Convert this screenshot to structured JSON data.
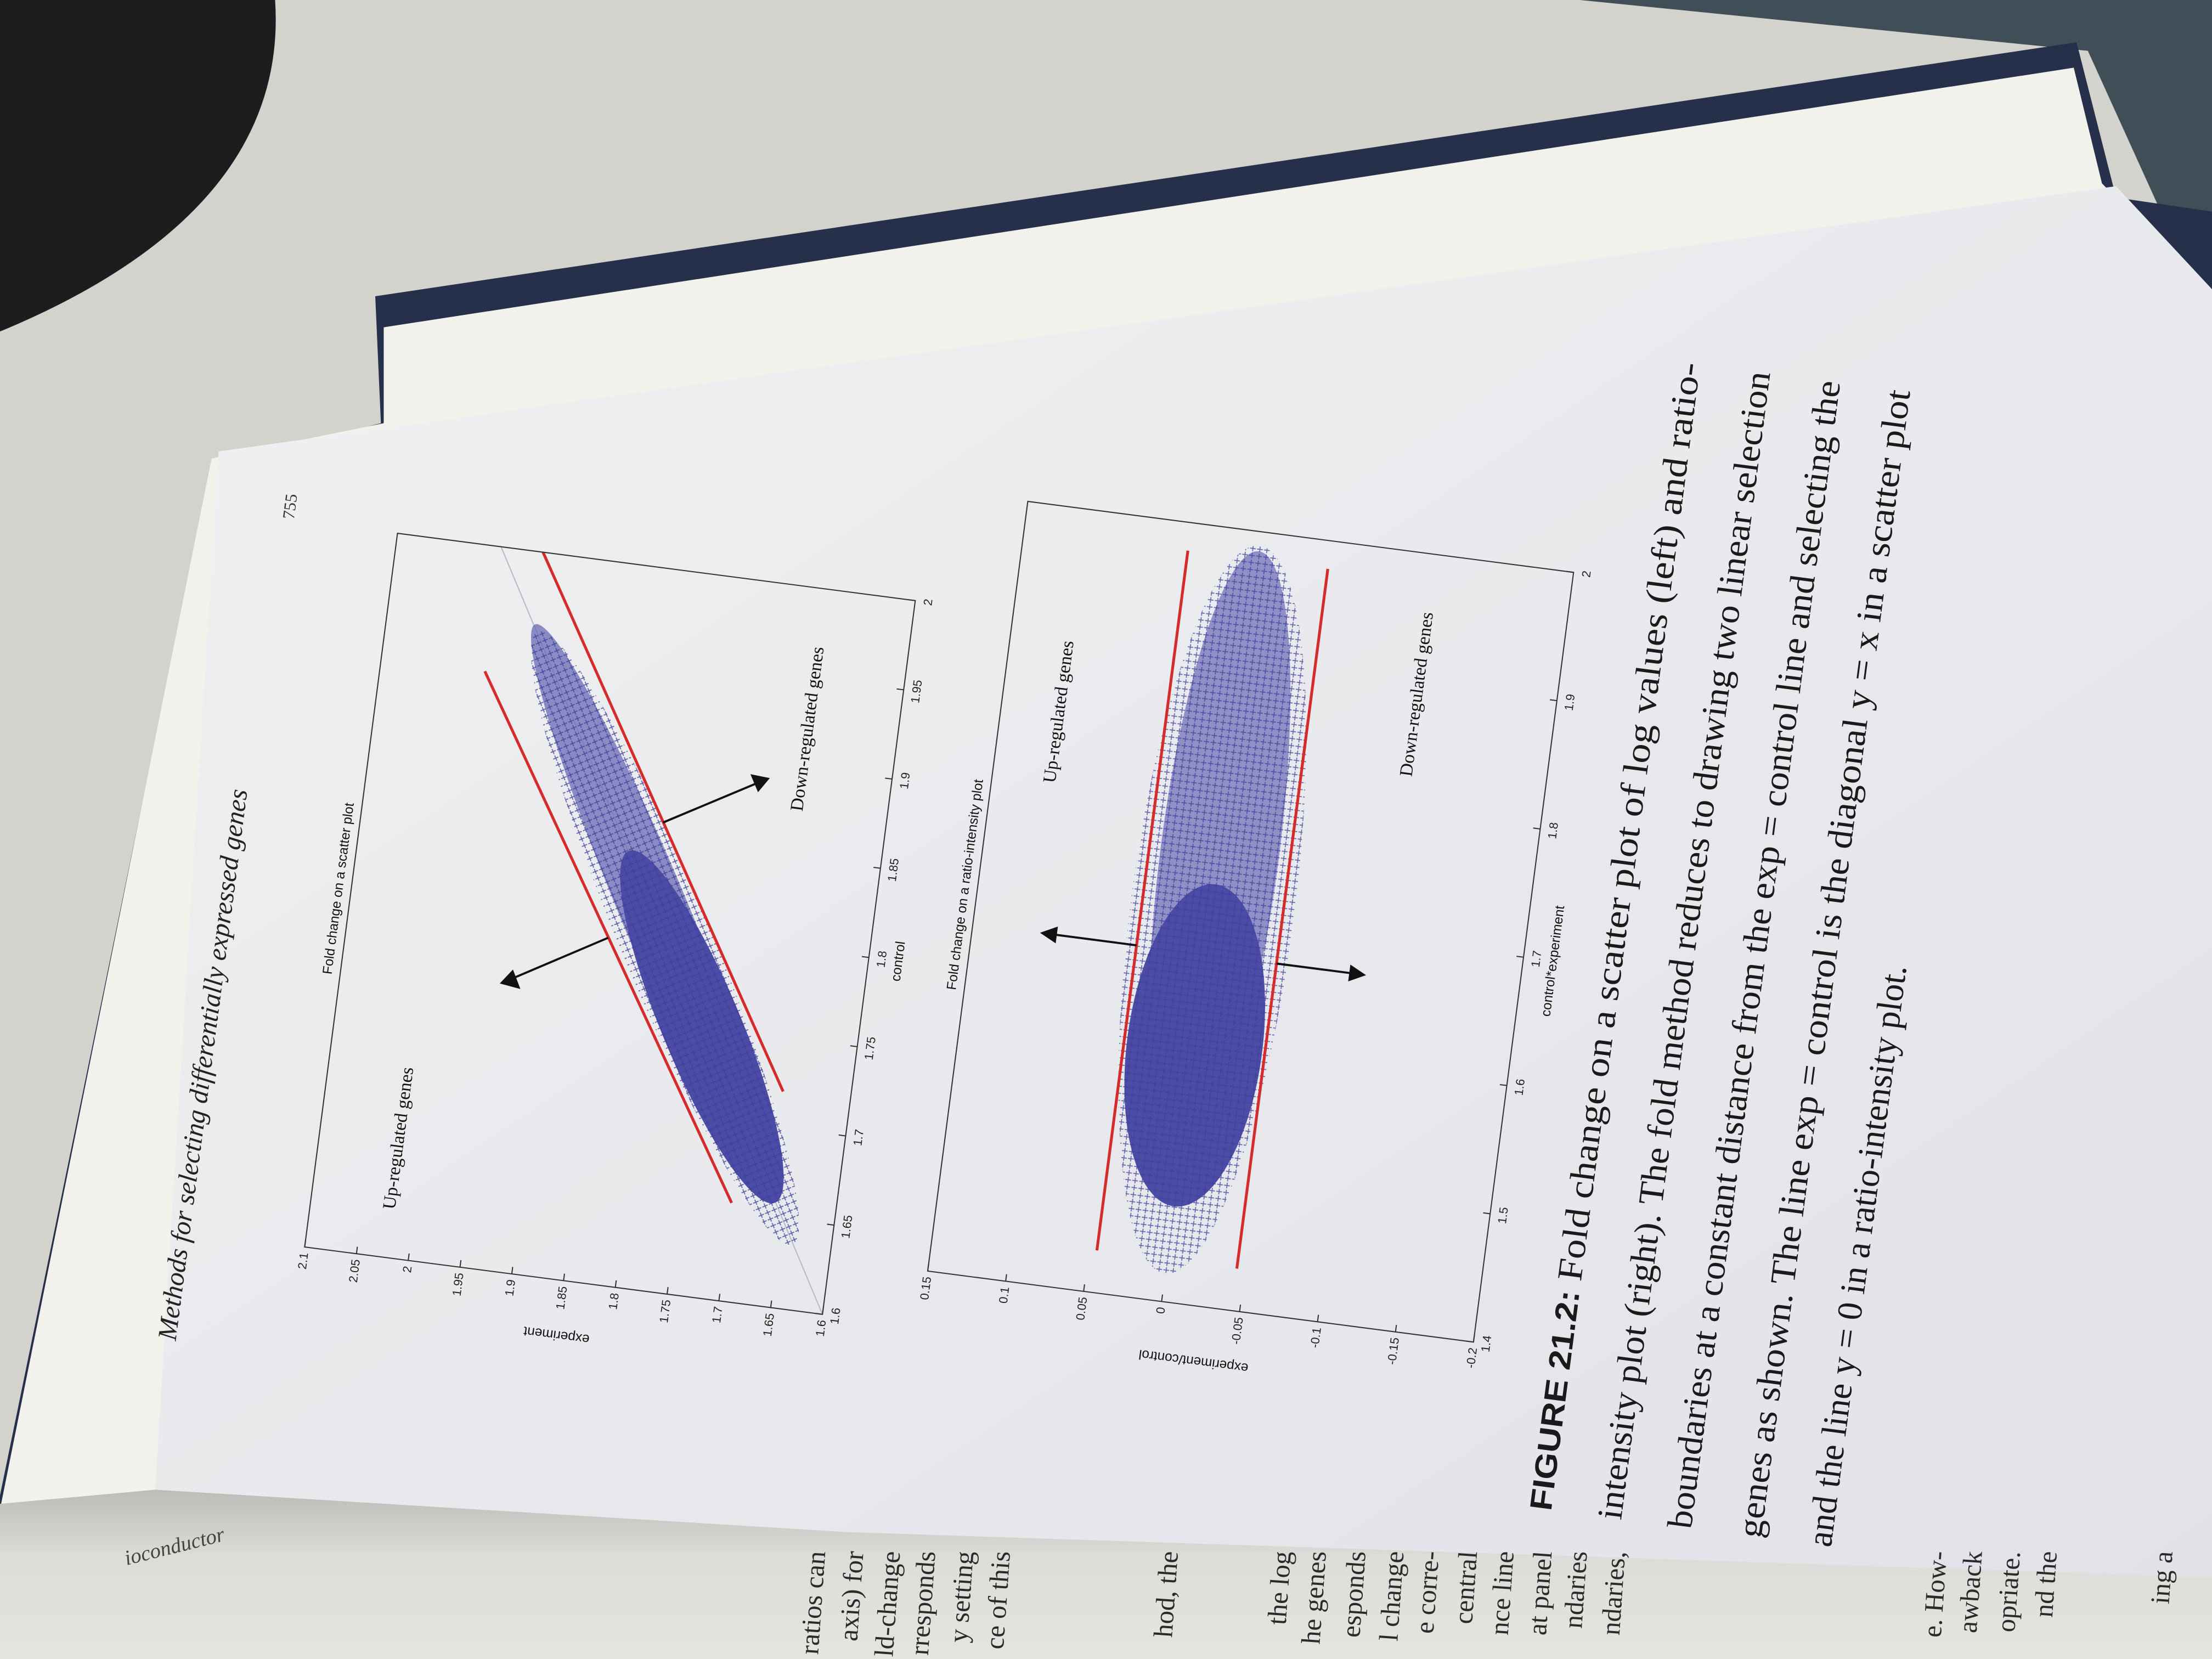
{
  "header": {
    "running_title": "Methods for selecting differentially expressed genes",
    "page_number": "755"
  },
  "figures": [
    {
      "title": "Fold change on a scatter plot",
      "x_label": "control",
      "y_label": "experiment",
      "xlim": [
        1.6,
        2
      ],
      "ylim": [
        1.6,
        2.1
      ],
      "xticks": [
        1.6,
        1.65,
        1.7,
        1.75,
        1.8,
        1.85,
        1.9,
        1.95,
        2
      ],
      "yticks": [
        1.6,
        1.65,
        1.7,
        1.75,
        1.8,
        1.85,
        1.9,
        1.95,
        2,
        2.05,
        2.1
      ],
      "annotations": [
        "Up-regulated genes",
        "Down-regulated genes"
      ]
    },
    {
      "title": "Fold change on a ratio-intensity plot",
      "x_label": "control*experiment",
      "y_label": "experiment/control",
      "xlim": [
        1.4,
        2
      ],
      "ylim": [
        -0.2,
        0.15
      ],
      "xticks": [
        1.4,
        1.5,
        1.6,
        1.7,
        1.8,
        1.9,
        2
      ],
      "yticks": [
        -0.2,
        -0.15,
        -0.1,
        -0.05,
        0,
        0.05,
        0.1,
        0.15
      ],
      "annotations": [
        "Up-regulated genes",
        "Down-regulated genes"
      ]
    }
  ],
  "caption": {
    "label": "FIGURE 21.2:",
    "lines": [
      "Fold change on a scatter plot of log values (left) and ratio-",
      "intensity plot (right). The fold method reduces to drawing two linear selection",
      "boundaries at a constant distance from the exp = control line and selecting the",
      "genes as shown. The line exp = control is the diagonal y = x in a scatter plot",
      "and the line y = 0 in a ratio-intensity plot."
    ]
  },
  "facing_page": {
    "running_head": "ioconductor",
    "fragments": [
      "ratios can",
      "axis) for",
      "ld-change",
      "rresponds",
      "y setting",
      "ce of this",
      "hod, the",
      "the log",
      "he genes",
      "esponds",
      "l change",
      "e corre-",
      "central",
      "nce line",
      "at panel",
      "ndaries",
      "ndaries,",
      "e. How-",
      "awback",
      "opriate.",
      "nd the",
      "ing a"
    ]
  }
}
